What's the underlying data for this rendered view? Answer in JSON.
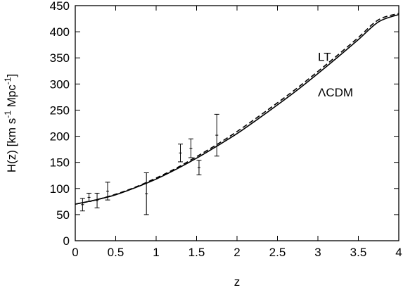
{
  "chart_data": {
    "type": "line",
    "xlabel": "z",
    "ylabel": "H(z) [km s⁻¹ Mpc⁻¹]",
    "ylabel_parts": [
      "H(z) [km s",
      "-1",
      " Mpc",
      "-1",
      "]"
    ],
    "xlim": [
      0,
      4
    ],
    "ylim": [
      0,
      450
    ],
    "xticks": [
      0,
      0.5,
      1,
      1.5,
      2,
      2.5,
      3,
      3.5,
      4
    ],
    "xtick_labels": [
      "0",
      "0.5",
      "1",
      "1.5",
      "2",
      "2.5",
      "3",
      "3.5",
      "4"
    ],
    "yticks": [
      0,
      50,
      100,
      150,
      200,
      250,
      300,
      350,
      400,
      450
    ],
    "ytick_labels": [
      "0",
      "50",
      "100",
      "150",
      "200",
      "250",
      "300",
      "350",
      "400",
      "450"
    ],
    "grid": false,
    "legend": "none",
    "series": [
      {
        "name": "LT",
        "style": "dashed",
        "x": [
          0,
          0.25,
          0.5,
          0.75,
          1.0,
          1.25,
          1.5,
          1.75,
          2.0,
          2.25,
          2.5,
          2.75,
          3.0,
          3.25,
          3.5,
          3.75,
          4.0
        ],
        "y": [
          70,
          78,
          89,
          103,
          120,
          139,
          161,
          184,
          209,
          236,
          264,
          293,
          324,
          356,
          389,
          423,
          435
        ]
      },
      {
        "name": "ΛCDM",
        "style": "solid",
        "x": [
          0,
          0.25,
          0.5,
          0.75,
          1.0,
          1.25,
          1.5,
          1.75,
          2.0,
          2.25,
          2.5,
          2.75,
          3.0,
          3.25,
          3.5,
          3.75,
          4.0
        ],
        "y": [
          70,
          78,
          88,
          102,
          118,
          137,
          158,
          181,
          205,
          232,
          260,
          289,
          320,
          352,
          385,
          419,
          433
        ]
      }
    ],
    "error_bars": [
      {
        "x": 0.09,
        "y": 69,
        "err": 12
      },
      {
        "x": 0.17,
        "y": 83,
        "err": 8
      },
      {
        "x": 0.27,
        "y": 77,
        "err": 14
      },
      {
        "x": 0.4,
        "y": 95,
        "err": 17
      },
      {
        "x": 0.88,
        "y": 90,
        "err": 40
      },
      {
        "x": 1.3,
        "y": 168,
        "err": 17
      },
      {
        "x": 1.43,
        "y": 177,
        "err": 18
      },
      {
        "x": 1.53,
        "y": 140,
        "err": 14
      },
      {
        "x": 1.75,
        "y": 202,
        "err": 40
      }
    ],
    "annotations": [
      {
        "text": "LT",
        "x": 3.0,
        "y": 344
      },
      {
        "text": "ΛCDM",
        "x": 3.0,
        "y": 276
      }
    ]
  }
}
